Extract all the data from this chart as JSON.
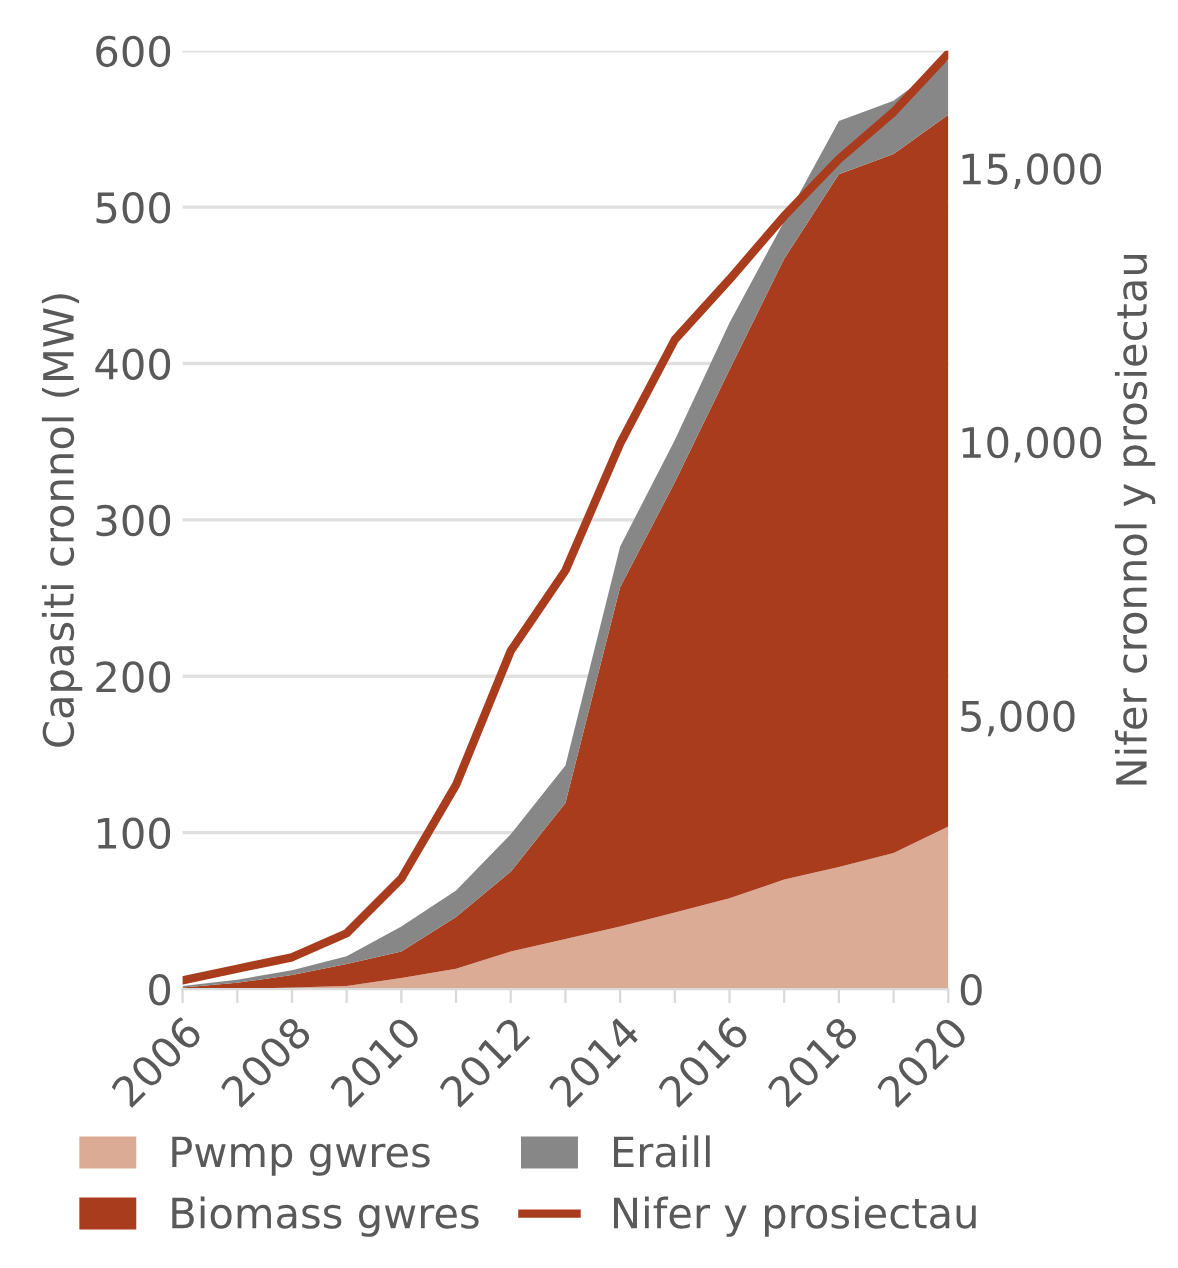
{
  "chart_data": {
    "type": "area",
    "stacked": true,
    "x": [
      2006,
      2007,
      2008,
      2009,
      2010,
      2011,
      2012,
      2013,
      2014,
      2015,
      2016,
      2017,
      2018,
      2019,
      2020
    ],
    "series": [
      {
        "name": "Pwmp gwres",
        "color": "#dcab96",
        "values": [
          0,
          0,
          1,
          2,
          7,
          13,
          24,
          32,
          40,
          49,
          58,
          70,
          78,
          87,
          104
        ]
      },
      {
        "name": "Biomass gwres",
        "color": "#a93c1c",
        "values": [
          1,
          4,
          8,
          14,
          17,
          33,
          51,
          87,
          217,
          275,
          338,
          397,
          443,
          447,
          455
        ]
      },
      {
        "name": "Eraill",
        "color": "#878787",
        "values": [
          1,
          2,
          3,
          5,
          16,
          17,
          24,
          24,
          26,
          27,
          30,
          24,
          34,
          34,
          35
        ]
      },
      {
        "name": "Nifer y prosiectau",
        "color": "#a93c1c",
        "type": "line",
        "axis": "y2",
        "values": [
          160,
          370,
          580,
          1020,
          2020,
          3730,
          6180,
          7650,
          9970,
          11870,
          12970,
          14130,
          15170,
          16030,
          17100
        ]
      }
    ],
    "ylabel": "Capasiti cronnol (MW)",
    "y2label": "Nifer cronnol y prosiectau",
    "xlim": [
      2006,
      2020
    ],
    "xticks": [
      2006,
      {
        "value": 2007,
        "label": null
      },
      2008,
      {
        "value": 2009,
        "label": null
      },
      2010,
      {
        "value": 2011,
        "label": null
      },
      2012,
      {
        "value": 2013,
        "label": null
      },
      2014,
      {
        "value": 2015,
        "label": null
      },
      2016,
      {
        "value": 2017,
        "label": null
      },
      2018,
      {
        "value": 2019,
        "label": null
      },
      2020
    ],
    "ylim": [
      0,
      600
    ],
    "yticks": [
      0,
      100,
      200,
      300,
      400,
      500,
      600
    ],
    "y2lim": [
      0,
      17150
    ],
    "y2ticks": [
      0,
      {
        "value": 5000,
        "label": "5,000"
      },
      {
        "value": 10000,
        "label": "10,000"
      },
      {
        "value": 15000,
        "label": "15,000"
      }
    ],
    "grid": "y",
    "legend": "bottom"
  }
}
